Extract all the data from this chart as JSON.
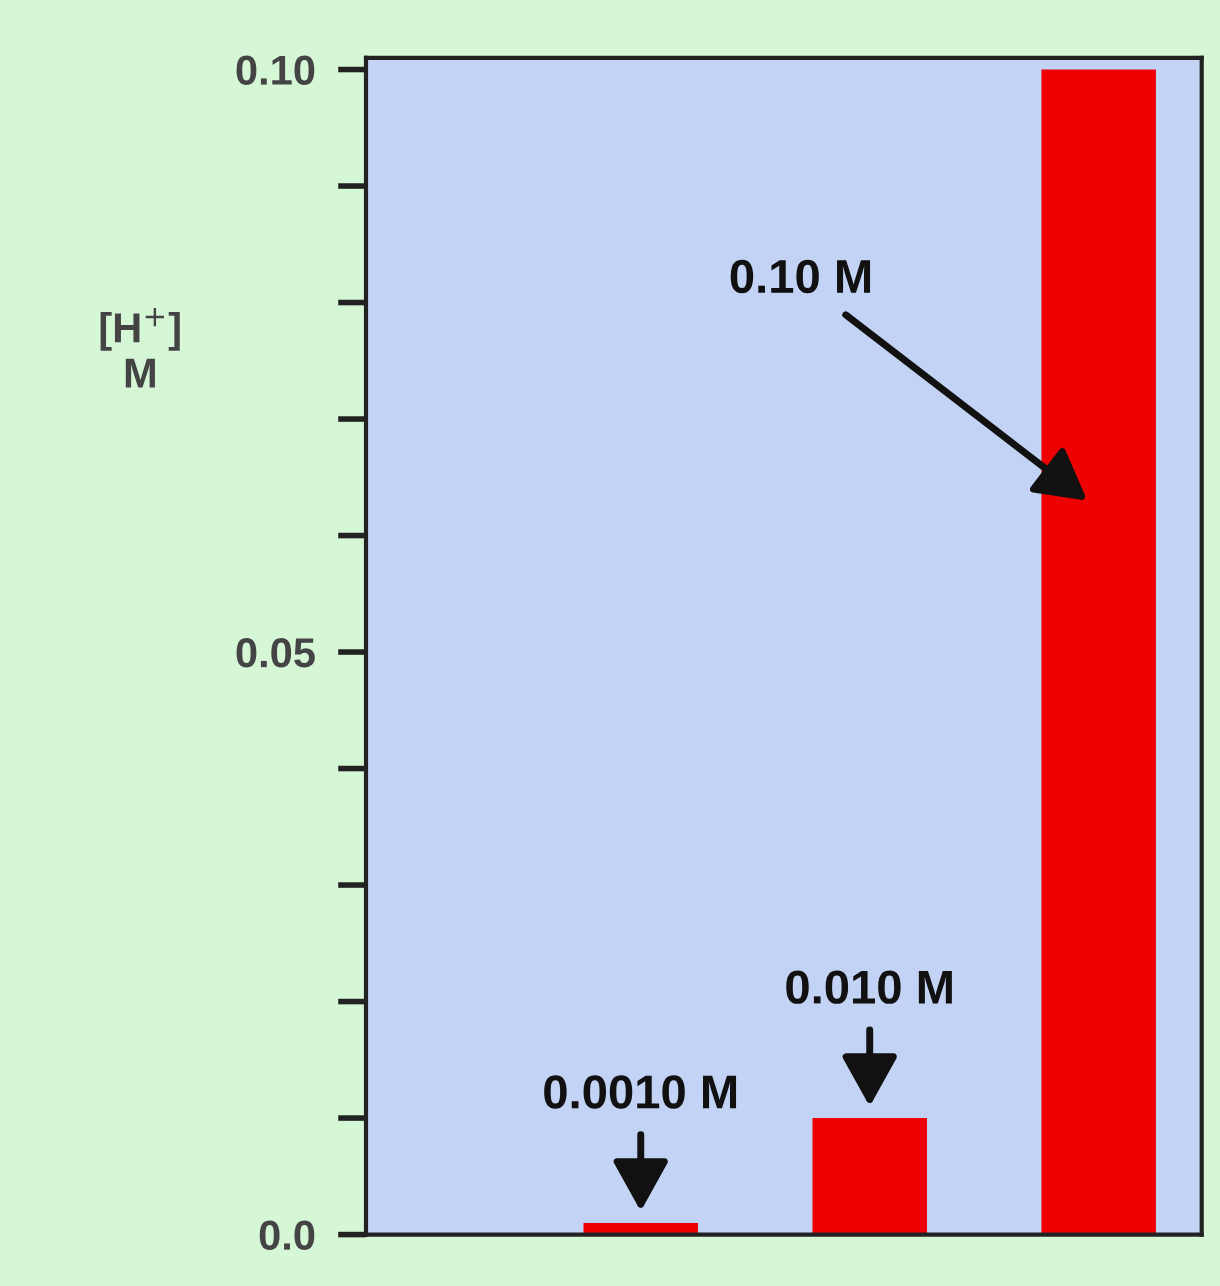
{
  "chart_data": {
    "type": "bar",
    "ylabel": "[H$^{+}$]\nM",
    "categories": [
      null,
      null,
      null
    ],
    "values": [
      0.001,
      0.01,
      0.1
    ],
    "value_labels": [
      "0.0010 M",
      "0.010 M",
      "0.10 M"
    ],
    "color": "#ee0000",
    "ylim": [
      0,
      0.101
    ],
    "yticks": [
      {
        "value": 0,
        "label": "0.0"
      },
      {
        "value": 0.01,
        "label": null
      },
      {
        "value": 0.02,
        "label": null
      },
      {
        "value": 0.03,
        "label": null
      },
      {
        "value": 0.04,
        "label": null
      },
      {
        "value": 0.05,
        "label": "0.05"
      },
      {
        "value": 0.06,
        "label": null
      },
      {
        "value": 0.07,
        "label": null
      },
      {
        "value": 0.08,
        "label": null
      },
      {
        "value": 0.09,
        "label": null
      },
      {
        "value": 0.1,
        "label": "0.10"
      }
    ],
    "grid": false,
    "legend": false
  }
}
